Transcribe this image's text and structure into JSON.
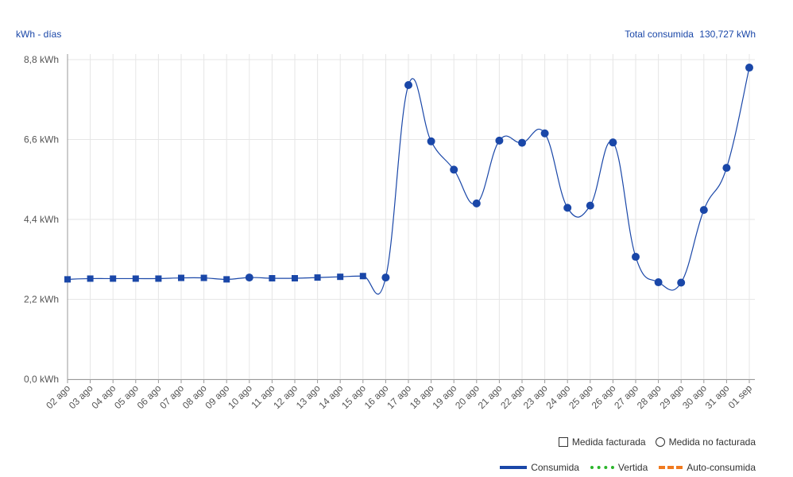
{
  "header": {
    "unit_label": "kWh - días",
    "total_label": "Total consumida",
    "total_value": "130,727 kWh"
  },
  "legend": {
    "markers": [
      {
        "shape": "square",
        "label": "Medida facturada"
      },
      {
        "shape": "circle",
        "label": "Medida no facturada"
      }
    ],
    "series": [
      {
        "style": "solid",
        "color": "#1a47a8",
        "label": "Consumida"
      },
      {
        "style": "dotted",
        "color": "#2bb52b",
        "label": "Vertida"
      },
      {
        "style": "dashed",
        "color": "#f07a20",
        "label": "Auto-consumida"
      }
    ]
  },
  "chart_data": {
    "type": "line",
    "title": "",
    "ylabel": "kWh - días",
    "ylim": [
      0,
      8.8
    ],
    "yticks": [
      "0,0 kWh",
      "2,2 kWh",
      "4,4 kWh",
      "6,6 kWh",
      "8,8 kWh"
    ],
    "ytick_values": [
      0,
      2.2,
      4.4,
      6.6,
      8.8
    ],
    "grid": true,
    "line_color": "#1a47a8",
    "categories": [
      "02 ago",
      "03 ago",
      "04 ago",
      "05 ago",
      "06 ago",
      "07 ago",
      "08 ago",
      "09 ago",
      "10 ago",
      "11 ago",
      "12 ago",
      "13 ago",
      "14 ago",
      "15 ago",
      "16 ago",
      "17 ago",
      "18 ago",
      "19 ago",
      "20 ago",
      "21 ago",
      "22 ago",
      "23 ago",
      "24 ago",
      "25 ago",
      "26 ago",
      "27 ago",
      "28 ago",
      "29 ago",
      "30 ago",
      "31 ago",
      "01 sep"
    ],
    "series": [
      {
        "name": "Consumida",
        "values": [
          2.75,
          2.77,
          2.77,
          2.77,
          2.77,
          2.79,
          2.79,
          2.75,
          2.8,
          2.78,
          2.78,
          2.8,
          2.82,
          2.84,
          2.8,
          8.1,
          6.55,
          5.77,
          4.84,
          6.57,
          6.51,
          6.77,
          4.72,
          4.78,
          6.52,
          3.37,
          2.67,
          2.66,
          4.66,
          5.82,
          8.58
        ],
        "markers": [
          "square",
          "square",
          "square",
          "square",
          "square",
          "square",
          "square",
          "square",
          "circle",
          "square",
          "square",
          "square",
          "square",
          "square",
          "circle",
          "circle",
          "circle",
          "circle",
          "circle",
          "circle",
          "circle",
          "circle",
          "circle",
          "circle",
          "circle",
          "circle",
          "circle",
          "circle",
          "circle",
          "circle",
          "circle"
        ]
      }
    ]
  }
}
